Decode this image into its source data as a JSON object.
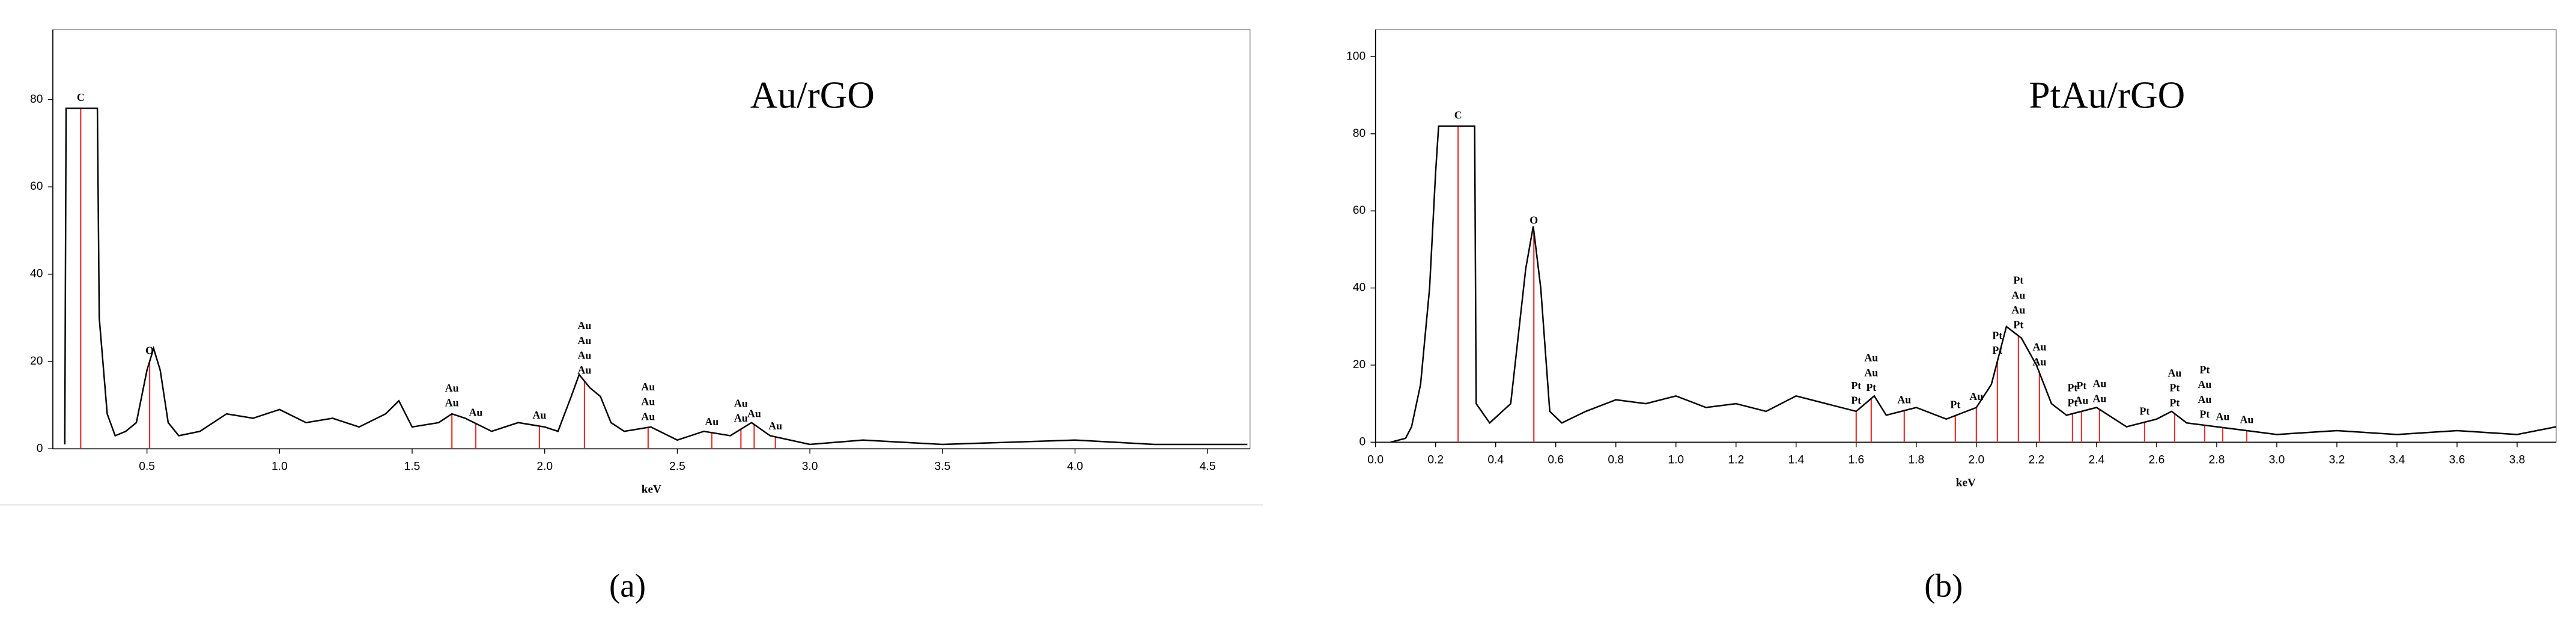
{
  "chart_data": [
    {
      "type": "line",
      "title": "Au/rGO",
      "xlabel": "keV",
      "panel_label": "(a)",
      "color": "#000000",
      "peak_color": "#e8312f",
      "xlim": [
        0.145,
        4.66
      ],
      "ylim": [
        0,
        96
      ],
      "xticks": [
        {
          "value": 0.5,
          "label": "0.5"
        },
        {
          "value": 1.0,
          "label": "1.0"
        },
        {
          "value": 1.5,
          "label": "1.5"
        },
        {
          "value": 2.0,
          "label": "2.0"
        },
        {
          "value": 2.5,
          "label": "2.5"
        },
        {
          "value": 3.0,
          "label": "3.0"
        },
        {
          "value": 3.5,
          "label": "3.5"
        },
        {
          "value": 4.0,
          "label": "4.0"
        },
        {
          "value": 4.5,
          "label": "4.5"
        }
      ],
      "yticks": [
        0,
        20,
        40,
        60,
        80
      ],
      "x": [
        0.19,
        0.195,
        0.313,
        0.32,
        0.35,
        0.38,
        0.42,
        0.46,
        0.5,
        0.525,
        0.55,
        0.58,
        0.62,
        0.7,
        0.8,
        0.9,
        1.0,
        1.1,
        1.2,
        1.3,
        1.4,
        1.45,
        1.5,
        1.6,
        1.65,
        1.7,
        1.8,
        1.9,
        2.0,
        2.05,
        2.1,
        2.13,
        2.17,
        2.21,
        2.25,
        2.3,
        2.4,
        2.5,
        2.6,
        2.7,
        2.78,
        2.85,
        3.0,
        3.2,
        3.5,
        4.0,
        4.3,
        4.5,
        4.65
      ],
      "values": [
        1,
        78,
        78,
        30,
        8,
        3,
        4,
        6,
        18,
        23,
        18,
        6,
        3,
        4,
        8,
        7,
        9,
        6,
        7,
        5,
        8,
        11,
        5,
        6,
        8,
        7,
        4,
        6,
        5,
        4,
        12,
        17,
        14,
        12,
        6,
        4,
        5,
        2,
        4,
        3,
        6,
        3,
        1,
        2,
        1,
        2,
        1,
        1,
        1
      ],
      "peaks": [
        {
          "x": 0.25,
          "labels": [
            "C"
          ]
        },
        {
          "x": 0.51,
          "labels": [
            "O"
          ]
        },
        {
          "x": 1.65,
          "labels": [
            "Au",
            "Au"
          ]
        },
        {
          "x": 1.74,
          "labels": [
            "Au"
          ]
        },
        {
          "x": 1.98,
          "labels": [
            "Au"
          ]
        },
        {
          "x": 2.15,
          "labels": [
            "Au",
            "Au",
            "Au",
            "Au"
          ]
        },
        {
          "x": 2.39,
          "labels": [
            "Au",
            "Au",
            "Au"
          ]
        },
        {
          "x": 2.63,
          "labels": [
            "Au"
          ]
        },
        {
          "x": 2.74,
          "labels": [
            "Au",
            "Au"
          ]
        },
        {
          "x": 2.79,
          "labels": [
            "Au"
          ]
        },
        {
          "x": 2.87,
          "labels": [
            "Au"
          ]
        }
      ]
    },
    {
      "type": "line",
      "title": "PtAu/rGO",
      "xlabel": "keV",
      "panel_label": "(b)",
      "color": "#000000",
      "peak_color": "#e8312f",
      "xlim": [
        0,
        3.93
      ],
      "ylim": [
        0,
        107
      ],
      "xticks": [
        {
          "value": 0.0,
          "label": "0.0"
        },
        {
          "value": 0.2,
          "label": "0.2"
        },
        {
          "value": 0.4,
          "label": "0.4"
        },
        {
          "value": 0.6,
          "label": "0.6"
        },
        {
          "value": 0.8,
          "label": "0.8"
        },
        {
          "value": 1.0,
          "label": "1.0"
        },
        {
          "value": 1.2,
          "label": "1.2"
        },
        {
          "value": 1.4,
          "label": "1.4"
        },
        {
          "value": 1.6,
          "label": "1.6"
        },
        {
          "value": 1.8,
          "label": "1.8"
        },
        {
          "value": 2.0,
          "label": "2.0"
        },
        {
          "value": 2.2,
          "label": "2.2"
        },
        {
          "value": 2.4,
          "label": "2.4"
        },
        {
          "value": 2.6,
          "label": "2.6"
        },
        {
          "value": 2.8,
          "label": "2.8"
        },
        {
          "value": 3.0,
          "label": "3.0"
        },
        {
          "value": 3.2,
          "label": "3.2"
        },
        {
          "value": 3.4,
          "label": "3.4"
        },
        {
          "value": 3.6,
          "label": "3.6"
        },
        {
          "value": 3.8,
          "label": "3.8"
        }
      ],
      "yticks": [
        0,
        20,
        40,
        60,
        80,
        100
      ],
      "x": [
        0.05,
        0.1,
        0.12,
        0.15,
        0.18,
        0.2,
        0.21,
        0.33,
        0.335,
        0.38,
        0.45,
        0.5,
        0.525,
        0.55,
        0.58,
        0.62,
        0.7,
        0.8,
        0.9,
        1.0,
        1.1,
        1.2,
        1.3,
        1.4,
        1.5,
        1.6,
        1.66,
        1.7,
        1.8,
        1.9,
        2.0,
        2.05,
        2.1,
        2.15,
        2.2,
        2.25,
        2.3,
        2.4,
        2.5,
        2.6,
        2.65,
        2.7,
        2.8,
        2.9,
        3.0,
        3.2,
        3.4,
        3.6,
        3.8,
        3.93
      ],
      "values": [
        0,
        1,
        4,
        15,
        40,
        70,
        82,
        82,
        10,
        5,
        10,
        45,
        56,
        40,
        8,
        5,
        8,
        11,
        10,
        12,
        9,
        10,
        8,
        12,
        10,
        8,
        12,
        7,
        9,
        6,
        9,
        15,
        30,
        27,
        20,
        10,
        7,
        9,
        4,
        6,
        8,
        5,
        4,
        3,
        2,
        3,
        2,
        3,
        2,
        4
      ],
      "peaks": [
        {
          "x": 0.275,
          "labels": [
            "C"
          ]
        },
        {
          "x": 0.527,
          "labels": [
            "O"
          ]
        },
        {
          "x": 1.6,
          "labels": [
            "Pt",
            "Pt"
          ]
        },
        {
          "x": 1.65,
          "labels": [
            "Au",
            "Au",
            "Pt"
          ]
        },
        {
          "x": 1.76,
          "labels": [
            "Au"
          ]
        },
        {
          "x": 1.93,
          "labels": [
            "Pt"
          ]
        },
        {
          "x": 2.0,
          "labels": [
            "Au"
          ]
        },
        {
          "x": 2.07,
          "labels": [
            "Pt",
            "Pt"
          ]
        },
        {
          "x": 2.14,
          "labels": [
            "Pt",
            "Au",
            "Au",
            "Pt"
          ]
        },
        {
          "x": 2.21,
          "labels": [
            "Au",
            "Au"
          ]
        },
        {
          "x": 2.32,
          "labels": [
            "Pt",
            "Pt"
          ]
        },
        {
          "x": 2.35,
          "labels": [
            "Pt",
            "Au"
          ]
        },
        {
          "x": 2.41,
          "labels": [
            "Au",
            "Au"
          ]
        },
        {
          "x": 2.56,
          "labels": [
            "Pt"
          ]
        },
        {
          "x": 2.66,
          "labels": [
            "Au",
            "Pt",
            "Pt"
          ]
        },
        {
          "x": 2.76,
          "labels": [
            "Pt",
            "Au",
            "Au",
            "Pt"
          ]
        },
        {
          "x": 2.82,
          "labels": [
            "Au"
          ]
        },
        {
          "x": 2.9,
          "labels": [
            "Au"
          ]
        }
      ]
    }
  ]
}
